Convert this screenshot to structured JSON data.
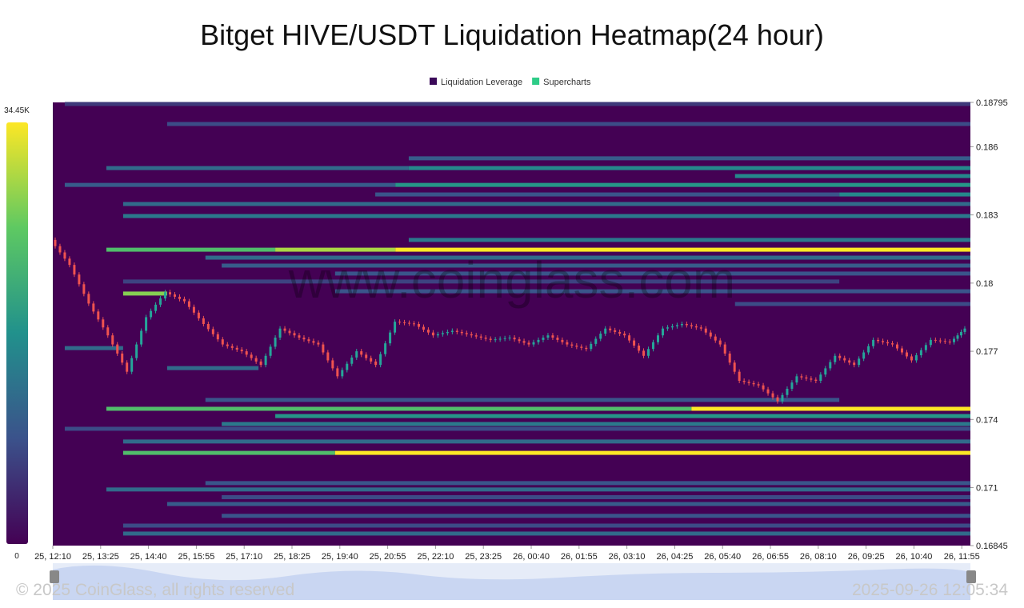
{
  "chart_data": {
    "type": "heatmap",
    "title": "Bitget HIVE/USDT Liquidation Heatmap(24 hour)",
    "watermark": "www.coinglass.com",
    "footer_left": "© 2025 CoinGlass, all rights reserved",
    "footer_right": "2025-09-26 12:05:34",
    "legend": [
      {
        "name": "Liquidation Leverage",
        "color": "#3b0a59"
      },
      {
        "name": "Supercharts",
        "color": "#2ecc87"
      }
    ],
    "categories": [
      "25, 12:10",
      "25, 13:25",
      "25, 14:40",
      "25, 15:55",
      "25, 17:10",
      "25, 18:25",
      "25, 19:40",
      "25, 20:55",
      "25, 22:10",
      "25, 23:25",
      "26, 00:40",
      "26, 01:55",
      "26, 03:10",
      "26, 04:25",
      "26, 05:40",
      "26, 06:55",
      "26, 08:10",
      "26, 09:25",
      "26, 10:40",
      "26, 11:55"
    ],
    "xlim": [
      0,
      19.18
    ],
    "ylim": [
      0.16845,
      0.18795
    ],
    "yticks": [
      0.16845,
      0.171,
      0.174,
      0.177,
      0.18,
      0.183,
      0.186,
      0.18795
    ],
    "color_range": [
      0,
      34450
    ],
    "color_ticks": [
      0,
      {
        "value": 34450,
        "label": "34.45K"
      }
    ],
    "colorscale": [
      "#440154",
      "#3b528b",
      "#21918c",
      "#5ec962",
      "#fde725"
    ],
    "levels": [
      {
        "price": 0.18788,
        "start": 0.25,
        "end": 19.18,
        "value": 6000
      },
      {
        "price": 0.187,
        "start": 2.39,
        "end": 19.18,
        "value": 8000
      },
      {
        "price": 0.18549,
        "start": 7.44,
        "end": 19.18,
        "value": 10000
      },
      {
        "price": 0.18506,
        "start": 1.12,
        "end": 7.44,
        "value": 12000
      },
      {
        "price": 0.18506,
        "start": 7.44,
        "end": 19.18,
        "value": 16000
      },
      {
        "price": 0.18471,
        "start": 14.26,
        "end": 19.18,
        "value": 16000
      },
      {
        "price": 0.18432,
        "start": 0.25,
        "end": 7.16,
        "value": 10000
      },
      {
        "price": 0.18432,
        "start": 7.16,
        "end": 19.18,
        "value": 18000
      },
      {
        "price": 0.1839,
        "start": 6.74,
        "end": 16.44,
        "value": 9000
      },
      {
        "price": 0.1839,
        "start": 16.44,
        "end": 19.18,
        "value": 16000
      },
      {
        "price": 0.18348,
        "start": 1.47,
        "end": 19.18,
        "value": 12000
      },
      {
        "price": 0.18295,
        "start": 1.47,
        "end": 19.18,
        "value": 14000
      },
      {
        "price": 0.1819,
        "start": 7.44,
        "end": 19.18,
        "value": 14000
      },
      {
        "price": 0.18147,
        "start": 1.12,
        "end": 4.65,
        "value": 24000
      },
      {
        "price": 0.18147,
        "start": 4.65,
        "end": 7.16,
        "value": 30000
      },
      {
        "price": 0.18147,
        "start": 7.16,
        "end": 19.18,
        "value": 34450
      },
      {
        "price": 0.18112,
        "start": 3.19,
        "end": 19.18,
        "value": 12000
      },
      {
        "price": 0.18077,
        "start": 3.53,
        "end": 19.18,
        "value": 10000
      },
      {
        "price": 0.18042,
        "start": 5.9,
        "end": 19.18,
        "value": 9000
      },
      {
        "price": 0.18007,
        "start": 1.47,
        "end": 16.44,
        "value": 7000
      },
      {
        "price": 0.17964,
        "start": 5.9,
        "end": 19.18,
        "value": 9000
      },
      {
        "price": 0.17954,
        "start": 1.47,
        "end": 2.39,
        "value": 28000
      },
      {
        "price": 0.17908,
        "start": 14.26,
        "end": 19.18,
        "value": 8000
      },
      {
        "price": 0.17714,
        "start": 0.25,
        "end": 1.47,
        "value": 12000
      },
      {
        "price": 0.17626,
        "start": 2.39,
        "end": 4.3,
        "value": 12000
      },
      {
        "price": 0.17486,
        "start": 3.19,
        "end": 16.44,
        "value": 9000
      },
      {
        "price": 0.17447,
        "start": 1.12,
        "end": 13.35,
        "value": 24000
      },
      {
        "price": 0.17447,
        "start": 13.35,
        "end": 19.18,
        "value": 34450
      },
      {
        "price": 0.17415,
        "start": 4.65,
        "end": 19.18,
        "value": 18000
      },
      {
        "price": 0.1738,
        "start": 3.53,
        "end": 19.18,
        "value": 14000
      },
      {
        "price": 0.17359,
        "start": 0.25,
        "end": 19.18,
        "value": 8000
      },
      {
        "price": 0.17303,
        "start": 1.47,
        "end": 19.18,
        "value": 12000
      },
      {
        "price": 0.17253,
        "start": 1.47,
        "end": 5.9,
        "value": 24000
      },
      {
        "price": 0.17253,
        "start": 5.9,
        "end": 19.18,
        "value": 34450
      },
      {
        "price": 0.1712,
        "start": 3.19,
        "end": 19.18,
        "value": 9000
      },
      {
        "price": 0.17092,
        "start": 1.12,
        "end": 19.18,
        "value": 12000
      },
      {
        "price": 0.17058,
        "start": 3.53,
        "end": 19.18,
        "value": 8000
      },
      {
        "price": 0.17028,
        "start": 2.39,
        "end": 19.18,
        "value": 10000
      },
      {
        "price": 0.16976,
        "start": 3.53,
        "end": 19.18,
        "value": 9000
      },
      {
        "price": 0.16933,
        "start": 1.47,
        "end": 19.18,
        "value": 8000
      },
      {
        "price": 0.16898,
        "start": 1.47,
        "end": 19.18,
        "value": 12000
      }
    ],
    "price": {
      "up_color": "#26a69a",
      "down_color": "#ef5350",
      "x": [
        0,
        0.4,
        0.8,
        1.2,
        1.6,
        2.0,
        2.4,
        2.8,
        3.2,
        3.6,
        4.0,
        4.4,
        4.8,
        5.2,
        5.6,
        6.0,
        6.4,
        6.8,
        7.2,
        7.6,
        8.0,
        8.4,
        8.8,
        9.2,
        9.6,
        10.0,
        10.4,
        10.8,
        11.2,
        11.6,
        12.0,
        12.4,
        12.8,
        13.2,
        13.6,
        14.0,
        14.4,
        14.8,
        15.2,
        15.6,
        16.0,
        16.4,
        16.8,
        17.2,
        17.6,
        18.0,
        18.4,
        18.8,
        19.1
      ],
      "values": [
        0.1819,
        0.1808,
        0.1791,
        0.1777,
        0.1761,
        0.1785,
        0.1796,
        0.1792,
        0.1782,
        0.1773,
        0.177,
        0.1764,
        0.178,
        0.1776,
        0.1773,
        0.1759,
        0.177,
        0.1764,
        0.1783,
        0.1782,
        0.1777,
        0.1779,
        0.1777,
        0.1775,
        0.1776,
        0.1773,
        0.1777,
        0.1773,
        0.1771,
        0.178,
        0.1777,
        0.1768,
        0.178,
        0.1782,
        0.178,
        0.1773,
        0.1757,
        0.1755,
        0.1748,
        0.1759,
        0.1757,
        0.1768,
        0.1764,
        0.1775,
        0.1773,
        0.1766,
        0.1775,
        0.1774,
        0.178
      ]
    }
  }
}
